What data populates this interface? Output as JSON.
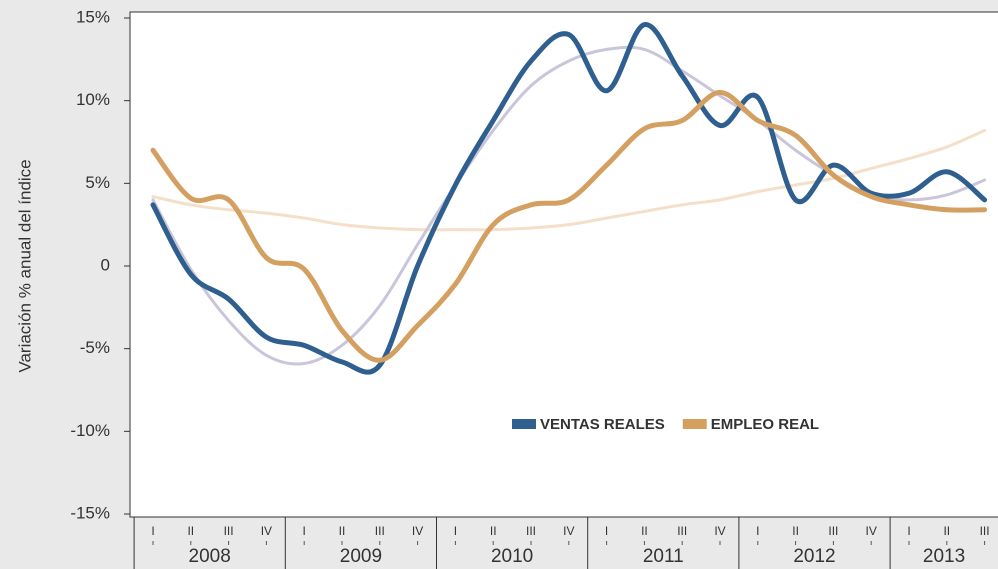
{
  "chart_data": {
    "type": "line",
    "y_label": "Variación % anual del índice",
    "categories": [
      "I",
      "II",
      "III",
      "IV",
      "I",
      "II",
      "III",
      "IV",
      "I",
      "II",
      "III",
      "IV",
      "I",
      "II",
      "III",
      "IV",
      "I",
      "II",
      "III",
      "IV",
      "I",
      "II",
      "III"
    ],
    "years": [
      "2008",
      "2009",
      "2010",
      "2011",
      "2012",
      "2013"
    ],
    "ylim": [
      -15,
      15
    ],
    "yticks": [
      {
        "value": -15,
        "label": "-15%"
      },
      {
        "value": -10,
        "label": "-10%"
      },
      {
        "value": -5,
        "label": "-5%"
      },
      0,
      {
        "value": 5,
        "label": "5%"
      },
      {
        "value": 10,
        "label": "10%"
      },
      {
        "value": 15,
        "label": "15%"
      }
    ],
    "legend": "center",
    "series": [
      {
        "color": "#f5dfc8",
        "values": [
          4.2,
          3.7,
          3.4,
          3.2,
          2.9,
          2.5,
          2.3,
          2.2,
          2.2,
          2.2,
          2.3,
          2.5,
          2.9,
          3.3,
          3.7,
          4.0,
          4.5,
          4.9,
          5.3,
          5.9,
          6.5,
          7.2,
          8.2
        ]
      },
      {
        "color": "#c9c6dc",
        "values": [
          4.0,
          -0.2,
          -3.3,
          -5.4,
          -5.9,
          -4.8,
          -2.4,
          1.3,
          4.9,
          8.2,
          10.9,
          12.4,
          13.1,
          13.1,
          11.8,
          10.3,
          8.8,
          7.0,
          5.5,
          4.3,
          4.0,
          4.3,
          5.2
        ]
      },
      {
        "name": "VENTAS REALES",
        "color": "#2f5f8f",
        "values": [
          3.7,
          -0.5,
          -2.0,
          -4.3,
          -4.8,
          -5.8,
          -6.0,
          0.0,
          4.9,
          8.8,
          12.4,
          14.0,
          10.6,
          14.6,
          11.5,
          8.5,
          10.2,
          4.0,
          6.1,
          4.4,
          4.4,
          5.7,
          4.0
        ]
      },
      {
        "name": "EMPLEO REAL",
        "color": "#d4a062",
        "values": [
          7.0,
          4.1,
          4.0,
          0.5,
          -0.2,
          -3.9,
          -5.7,
          -3.6,
          -1.1,
          2.5,
          3.7,
          4.0,
          6.1,
          8.3,
          8.8,
          10.5,
          8.8,
          7.9,
          5.5,
          4.2,
          3.7,
          3.4,
          3.4
        ]
      }
    ]
  }
}
